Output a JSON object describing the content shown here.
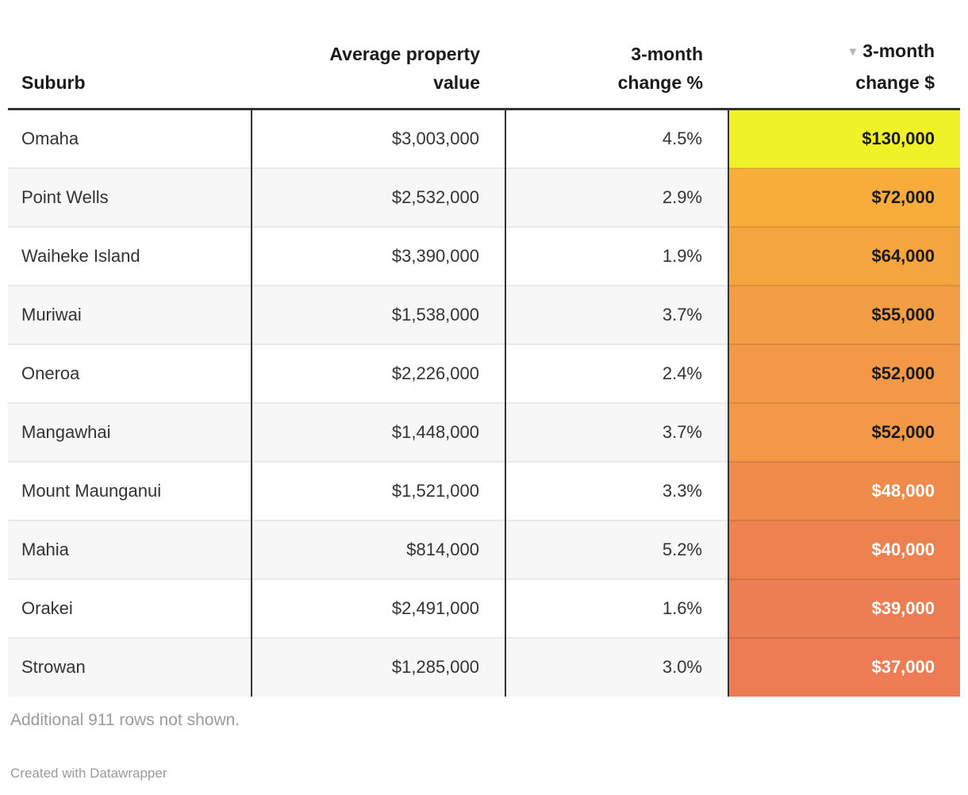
{
  "chart_data": {
    "type": "table",
    "columns": [
      "Suburb",
      "Average property value",
      "3-month change %",
      "3-month change $"
    ],
    "sorted_by": "3-month change $",
    "sort_direction": "descending",
    "sort_icon": "▼",
    "rows": [
      {
        "suburb": "Omaha",
        "avg_value": "$3,003,000",
        "change_pct": "4.5%",
        "change_dollars": "$130,000",
        "cell_bg": "#eef227",
        "cell_text": "#1a1a1a"
      },
      {
        "suburb": "Point Wells",
        "avg_value": "$2,532,000",
        "change_pct": "2.9%",
        "change_dollars": "$72,000",
        "cell_bg": "#f8ad3a",
        "cell_text": "#1a1a1a"
      },
      {
        "suburb": "Waiheke Island",
        "avg_value": "$3,390,000",
        "change_pct": "1.9%",
        "change_dollars": "$64,000",
        "cell_bg": "#f5a53d",
        "cell_text": "#1a1a1a"
      },
      {
        "suburb": "Muriwai",
        "avg_value": "$1,538,000",
        "change_pct": "3.7%",
        "change_dollars": "$55,000",
        "cell_bg": "#f39e44",
        "cell_text": "#1a1a1a"
      },
      {
        "suburb": "Oneroa",
        "avg_value": "$2,226,000",
        "change_pct": "2.4%",
        "change_dollars": "$52,000",
        "cell_bg": "#f29847",
        "cell_text": "#1a1a1a"
      },
      {
        "suburb": "Mangawhai",
        "avg_value": "$1,448,000",
        "change_pct": "3.7%",
        "change_dollars": "$52,000",
        "cell_bg": "#f29847",
        "cell_text": "#1a1a1a"
      },
      {
        "suburb": "Mount Maunganui",
        "avg_value": "$1,521,000",
        "change_pct": "3.3%",
        "change_dollars": "$48,000",
        "cell_bg": "#f08c4b",
        "cell_text": "#ffffff"
      },
      {
        "suburb": "Mahia",
        "avg_value": "$814,000",
        "change_pct": "5.2%",
        "change_dollars": "$40,000",
        "cell_bg": "#ee8150",
        "cell_text": "#ffffff"
      },
      {
        "suburb": "Orakei",
        "avg_value": "$2,491,000",
        "change_pct": "1.6%",
        "change_dollars": "$39,000",
        "cell_bg": "#ed7d52",
        "cell_text": "#ffffff"
      },
      {
        "suburb": "Strowan",
        "avg_value": "$1,285,000",
        "change_pct": "3.0%",
        "change_dollars": "$37,000",
        "cell_bg": "#ed7b53",
        "cell_text": "#ffffff"
      }
    ]
  },
  "note": "Additional 911 rows not shown.",
  "attribution": "Created with Datawrapper",
  "colors": {
    "header_border": "#333333",
    "column_divider": "#333333",
    "row_separator": "#e9e9e9",
    "stripe_bg": "#f7f7f7",
    "header_text": "#1a1a1a",
    "body_text": "#333333",
    "note_text": "#9b9b9b",
    "sort_arrow": "#b5b5b5"
  }
}
